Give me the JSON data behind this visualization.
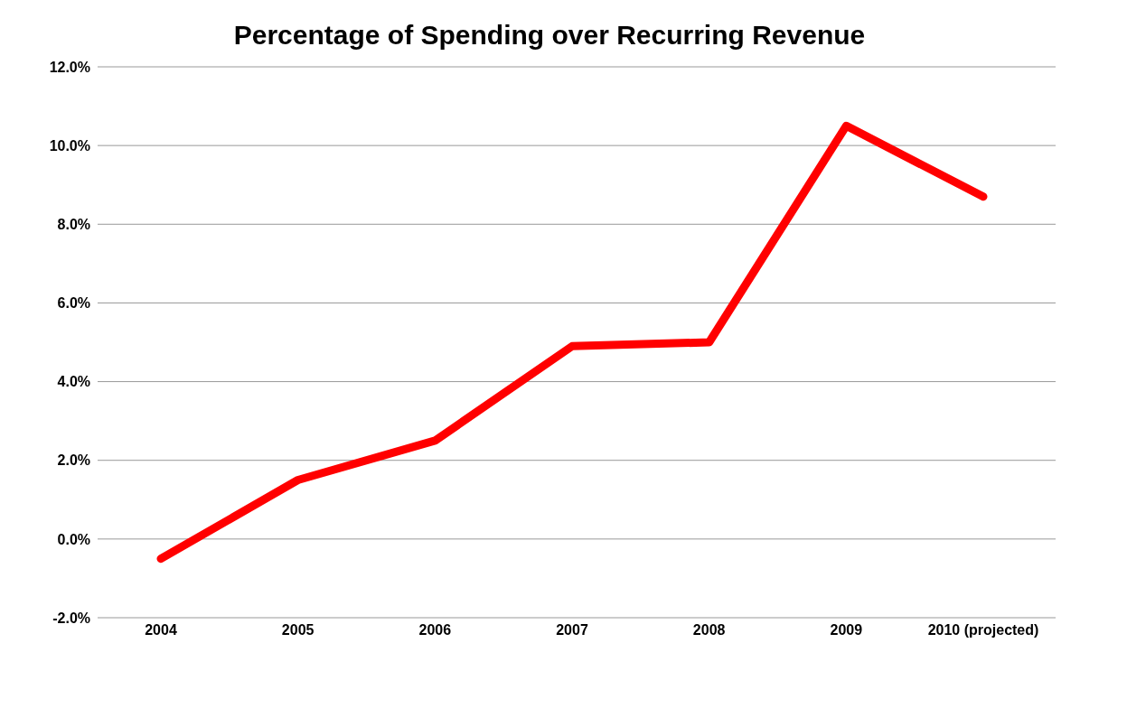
{
  "chart_data": {
    "type": "line",
    "title": "Percentage of Spending over Recurring Revenue",
    "categories": [
      "2004",
      "2005",
      "2006",
      "2007",
      "2008",
      "2009",
      "2010 (projected)"
    ],
    "series": [
      {
        "color": "#ff0000",
        "values": [
          -0.5,
          1.5,
          2.5,
          4.9,
          5.0,
          10.5,
          8.7
        ]
      }
    ],
    "ylim": [
      -2,
      12
    ],
    "yticks": [
      {
        "value": -2,
        "label": "-2.0%"
      },
      {
        "value": 0,
        "label": "0.0%"
      },
      {
        "value": 2,
        "label": "2.0%"
      },
      {
        "value": 4,
        "label": "4.0%"
      },
      {
        "value": 6,
        "label": "6.0%"
      },
      {
        "value": 8,
        "label": "8.0%"
      },
      {
        "value": 10,
        "label": "10.0%"
      },
      {
        "value": 12,
        "label": "12.0%"
      }
    ],
    "grid": "y",
    "legend": false,
    "marker": "none",
    "line_style": "solid"
  }
}
